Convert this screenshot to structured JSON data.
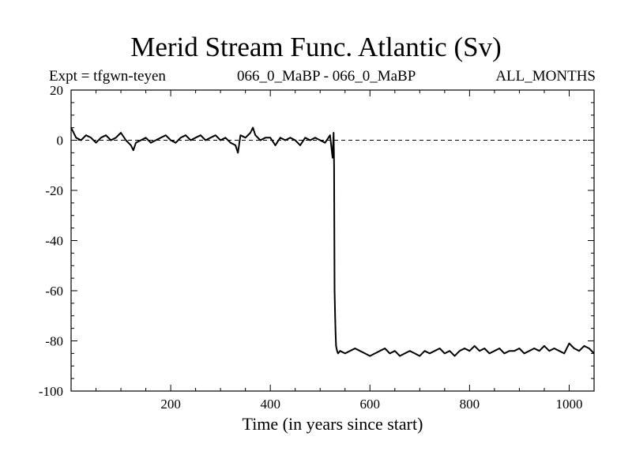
{
  "chart_data": {
    "type": "line",
    "title": "Merid Stream Func. Atlantic (Sv)",
    "header_left": "Expt = tfgwn-teyen",
    "header_center": "066_0_MaBP - 066_0_MaBP",
    "header_right": "ALL_MONTHS",
    "xlabel": "Time (in years since start)",
    "ylabel": "",
    "xlim": [
      0,
      1050
    ],
    "ylim": [
      -100,
      20
    ],
    "xticks": [
      200,
      400,
      600,
      800,
      1000
    ],
    "xtick_labels": [
      "200",
      "400",
      "600",
      "800",
      "1000"
    ],
    "yticks": [
      20,
      0,
      -20,
      -40,
      -60,
      -80,
      -100
    ],
    "ytick_labels": [
      "20",
      "0",
      "-20",
      "-40",
      "-60",
      "-80",
      "-100"
    ],
    "reference_line": {
      "y": 0,
      "style": "dashed"
    },
    "series": [
      {
        "x": [
          0,
          10,
          20,
          30,
          40,
          50,
          60,
          70,
          80,
          90,
          100,
          110,
          120,
          125,
          130,
          140,
          150,
          160,
          170,
          180,
          190,
          200,
          210,
          220,
          230,
          240,
          250,
          260,
          270,
          280,
          290,
          300,
          310,
          320,
          330,
          335,
          340,
          350,
          360,
          365,
          370,
          380,
          390,
          400,
          410,
          420,
          430,
          440,
          450,
          460,
          470,
          480,
          490,
          500,
          510,
          520,
          525,
          527,
          528,
          529,
          530,
          531,
          532,
          534,
          536,
          540,
          550,
          560,
          570,
          580,
          590,
          600,
          610,
          620,
          630,
          640,
          650,
          660,
          670,
          680,
          690,
          700,
          710,
          720,
          730,
          740,
          750,
          760,
          770,
          780,
          790,
          800,
          810,
          820,
          830,
          840,
          850,
          860,
          870,
          880,
          890,
          900,
          910,
          920,
          930,
          940,
          950,
          960,
          970,
          980,
          990,
          1000,
          1010,
          1020,
          1030,
          1040,
          1050
        ],
        "values": [
          5,
          1,
          0,
          2,
          1,
          -1,
          1,
          2,
          0,
          1,
          3,
          0,
          -2,
          -4,
          -1,
          0,
          1,
          -1,
          0,
          1,
          2,
          0,
          -1,
          1,
          2,
          0,
          1,
          2,
          0,
          1,
          2,
          0,
          1,
          -1,
          -2,
          -5,
          2,
          1,
          3,
          5,
          2,
          0,
          1,
          1,
          -2,
          1,
          0,
          1,
          0,
          -2,
          1,
          0,
          1,
          0,
          -1,
          2,
          -7,
          3,
          -10,
          -60,
          -70,
          -77,
          -82,
          -84,
          -85,
          -84,
          -85,
          -84,
          -83,
          -84,
          -85,
          -86,
          -85,
          -84,
          -83,
          -85,
          -84,
          -86,
          -85,
          -84,
          -85,
          -86,
          -84,
          -85,
          -84,
          -83,
          -85,
          -84,
          -86,
          -84,
          -83,
          -84,
          -82,
          -84,
          -83,
          -85,
          -84,
          -83,
          -85,
          -84,
          -84,
          -83,
          -85,
          -84,
          -83,
          -84,
          -82,
          -84,
          -83,
          -84,
          -85,
          -81,
          -83,
          -84,
          -82,
          -83,
          -85
        ]
      }
    ]
  }
}
